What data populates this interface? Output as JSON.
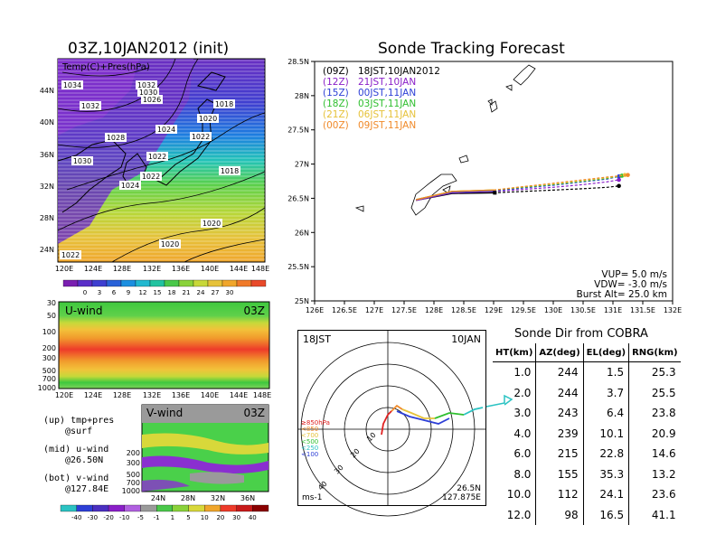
{
  "map_panel": {
    "title": "03Z,10JAN2012 (init)",
    "subtitle": "Temp(C)+Pres(hPa)",
    "lat_labels": [
      "44N",
      "40N",
      "36N",
      "32N",
      "28N",
      "24N"
    ],
    "lon_labels": [
      "120E",
      "124E",
      "128E",
      "132E",
      "136E",
      "140E",
      "144E",
      "148E"
    ],
    "isobar_labels": [
      "1032",
      "1030",
      "1026",
      "1034",
      "1032",
      "1028",
      "1024",
      "1018",
      "1020",
      "1022",
      "1030",
      "1024",
      "1022",
      "1022",
      "1018",
      "1020",
      "1020",
      "1022"
    ]
  },
  "temp_colorbar": {
    "ticks": [
      "0",
      "3",
      "6",
      "9",
      "12",
      "15",
      "18",
      "21",
      "24",
      "27",
      "30"
    ]
  },
  "u_panel": {
    "title": "U-wind",
    "time": "03Z",
    "levels": [
      "30",
      "50",
      "100",
      "200",
      "300",
      "500",
      "700",
      "1000"
    ],
    "lon_labels": [
      "120E",
      "124E",
      "128E",
      "132E",
      "136E",
      "140E",
      "144E",
      "148E"
    ]
  },
  "v_panel": {
    "title": "V-wind",
    "time": "03Z",
    "levels": [
      "200",
      "300",
      "500",
      "700",
      "1000"
    ],
    "lat_labels": [
      "24N",
      "28N",
      "32N",
      "36N"
    ]
  },
  "wind_colorbar": {
    "ticks": [
      "-40",
      "-30",
      "-20",
      "-10",
      "-5",
      "-1",
      "1",
      "5",
      "10",
      "20",
      "30",
      "40"
    ]
  },
  "notes": {
    "up1": "(up) tmp+pres",
    "up2": "@surf",
    "mid1": "(mid) u-wind",
    "mid2": "@26.50N",
    "bot1": "(bot) v-wind",
    "bot2": "@127.84E"
  },
  "tracking": {
    "title": "Sonde Tracking Forecast",
    "legend": [
      {
        "tag": "(09Z)",
        "label": "18JST,10JAN2012",
        "color": "#000000"
      },
      {
        "tag": "(12Z)",
        "label": "21JST,10JAN",
        "color": "#8a1fc8"
      },
      {
        "tag": "(15Z)",
        "label": "00JST,11JAN",
        "color": "#2d3fd6"
      },
      {
        "tag": "(18Z)",
        "label": "03JST,11JAN",
        "color": "#2fbf2f"
      },
      {
        "tag": "(21Z)",
        "label": "06JST,11JAN",
        "color": "#e6c23a"
      },
      {
        "tag": "(00Z)",
        "label": "09JST,11JAN",
        "color": "#f08a2a"
      }
    ],
    "params": {
      "vup": "VUP= 5.0 m/s",
      "vdw": "VDW= -3.0 m/s",
      "burst": "Burst Alt= 25.0 km"
    }
  },
  "chart_data": [
    {
      "type": "line",
      "title": "Sonde Tracking Forecast",
      "xlabel": "",
      "ylabel": "",
      "xlim": [
        126,
        132
      ],
      "ylim": [
        25,
        28.5
      ],
      "x_ticks": [
        "126E",
        "126.5E",
        "127E",
        "127.5E",
        "128E",
        "128.5E",
        "129E",
        "129.5E",
        "130E",
        "130.5E",
        "131E",
        "131.5E",
        "132E"
      ],
      "y_ticks": [
        "28.5N",
        "28N",
        "27.5N",
        "27N",
        "26.5N",
        "26N",
        "25.5N",
        "25N"
      ],
      "series": [
        {
          "name": "(09Z) 18JST,10JAN2012",
          "color": "#000000",
          "x": [
            127.7,
            128.3,
            129.0,
            129.5,
            130.0,
            130.5,
            130.9,
            131.1
          ],
          "y": [
            26.47,
            26.57,
            26.58,
            26.6,
            26.62,
            26.64,
            26.66,
            26.68
          ]
        },
        {
          "name": "(12Z) 21JST,10JAN",
          "color": "#8a1fc8",
          "x": [
            127.7,
            128.3,
            129.0,
            129.5,
            130.0,
            130.5,
            130.9,
            131.1
          ],
          "y": [
            26.47,
            26.58,
            26.6,
            26.63,
            26.66,
            26.7,
            26.74,
            26.77
          ]
        },
        {
          "name": "(15Z) 00JST,11JAN",
          "color": "#2d3fd6",
          "x": [
            127.7,
            128.3,
            129.0,
            129.5,
            130.0,
            130.5,
            130.9,
            131.1
          ],
          "y": [
            26.48,
            26.59,
            26.61,
            26.65,
            26.69,
            26.74,
            26.78,
            26.82
          ]
        },
        {
          "name": "(18Z) 03JST,11JAN",
          "color": "#2fbf2f",
          "x": [
            127.7,
            128.3,
            129.0,
            129.5,
            130.0,
            130.5,
            130.9,
            131.15
          ],
          "y": [
            26.48,
            26.6,
            26.62,
            26.66,
            26.7,
            26.75,
            26.79,
            26.83
          ]
        },
        {
          "name": "(21Z) 06JST,11JAN",
          "color": "#e6c23a",
          "x": [
            127.7,
            128.3,
            129.0,
            129.5,
            130.0,
            130.5,
            130.9,
            131.2
          ],
          "y": [
            26.48,
            26.6,
            26.62,
            26.67,
            26.71,
            26.76,
            26.8,
            26.84
          ]
        },
        {
          "name": "(00Z) 09JST,11JAN",
          "color": "#f08a2a",
          "x": [
            127.7,
            128.3,
            129.0,
            129.5,
            130.0,
            130.5,
            130.9,
            131.25
          ],
          "y": [
            26.48,
            26.6,
            26.62,
            26.67,
            26.72,
            26.77,
            26.81,
            26.84
          ]
        }
      ]
    },
    {
      "type": "scatter",
      "title": "",
      "label_left": "18JST",
      "label_right": "10JAN",
      "units": "ms-1",
      "loc1": "26.5N",
      "loc2": "127.875E",
      "ring_labels": [
        "10",
        "20",
        "30",
        "40"
      ],
      "legend": [
        {
          "label": "≥850hPa",
          "color": "#e02020"
        },
        {
          "label": "<850",
          "color": "#f08a2a"
        },
        {
          "label": "<700",
          "color": "#e6c23a"
        },
        {
          "label": "<500",
          "color": "#2fbf2f"
        },
        {
          "label": "<250",
          "color": "#2bc3c3"
        },
        {
          "label": "<100",
          "color": "#2d3fd6"
        }
      ]
    },
    {
      "type": "table",
      "title": "Sonde Dir from COBRA",
      "columns": [
        "HT(km)",
        "AZ(deg)",
        "EL(deg)",
        "RNG(km)"
      ],
      "rows": [
        [
          "1.0",
          "244",
          "1.5",
          "25.3"
        ],
        [
          "2.0",
          "244",
          "3.7",
          "25.5"
        ],
        [
          "3.0",
          "243",
          "6.4",
          "23.8"
        ],
        [
          "4.0",
          "239",
          "10.1",
          "20.9"
        ],
        [
          "6.0",
          "215",
          "22.8",
          "14.6"
        ],
        [
          "8.0",
          "155",
          "35.3",
          "13.2"
        ],
        [
          "10.0",
          "112",
          "24.1",
          "23.6"
        ],
        [
          "12.0",
          "98",
          "16.5",
          "41.1"
        ]
      ]
    }
  ]
}
